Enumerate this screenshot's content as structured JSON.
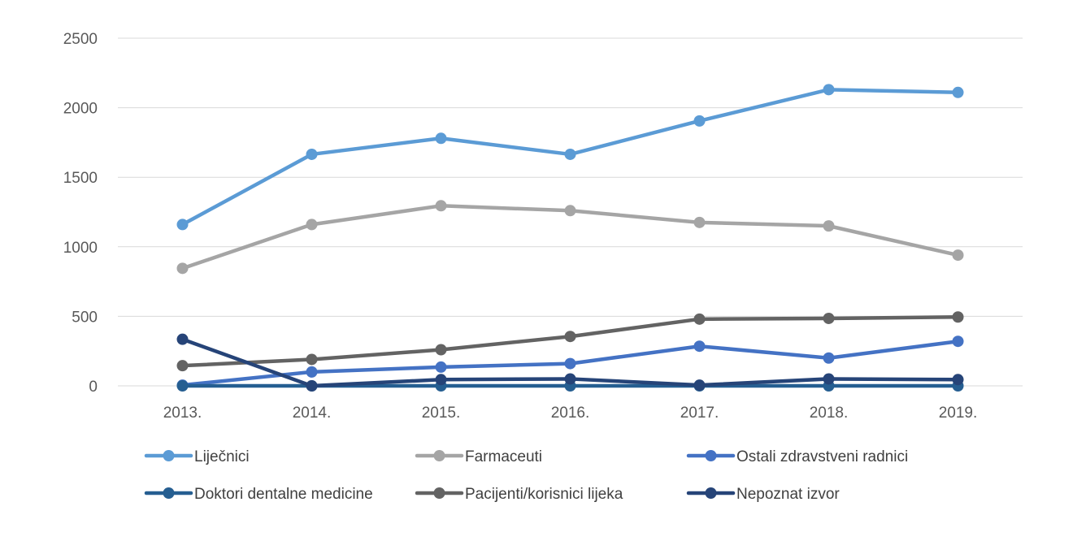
{
  "chart_data": {
    "type": "line",
    "title": "",
    "xlabel": "",
    "ylabel": "",
    "categories": [
      "2013.",
      "2014.",
      "2015.",
      "2016.",
      "2017.",
      "2018.",
      "2019."
    ],
    "ylim": [
      0,
      2500
    ],
    "yticks": [
      "0",
      "500",
      "1000",
      "1500",
      "2000",
      "2500"
    ],
    "ytick_values": [
      0,
      500,
      1000,
      1500,
      2000,
      2500
    ],
    "grid": "horizontal",
    "legend_position": "bottom",
    "series": [
      {
        "name": "Liječnici",
        "color": "#5b9bd5",
        "values": [
          1160,
          1665,
          1780,
          1665,
          1905,
          2130,
          2110
        ]
      },
      {
        "name": "Farmaceuti",
        "color": "#a5a5a5",
        "values": [
          845,
          1160,
          1295,
          1260,
          1175,
          1150,
          940
        ]
      },
      {
        "name": "Ostali zdravstveni radnici",
        "color": "#4472c4",
        "values": [
          5,
          100,
          135,
          160,
          285,
          200,
          320
        ]
      },
      {
        "name": "Doktori dentalne medicine",
        "color": "#255e91",
        "values": [
          0,
          0,
          0,
          0,
          0,
          0,
          0
        ]
      },
      {
        "name": "Pacijenti/korisnici lijeka",
        "color": "#636363",
        "values": [
          145,
          190,
          260,
          355,
          480,
          485,
          495
        ]
      },
      {
        "name": "Nepoznat izvor",
        "color": "#264478",
        "values": [
          335,
          0,
          45,
          50,
          5,
          50,
          45
        ]
      }
    ]
  }
}
